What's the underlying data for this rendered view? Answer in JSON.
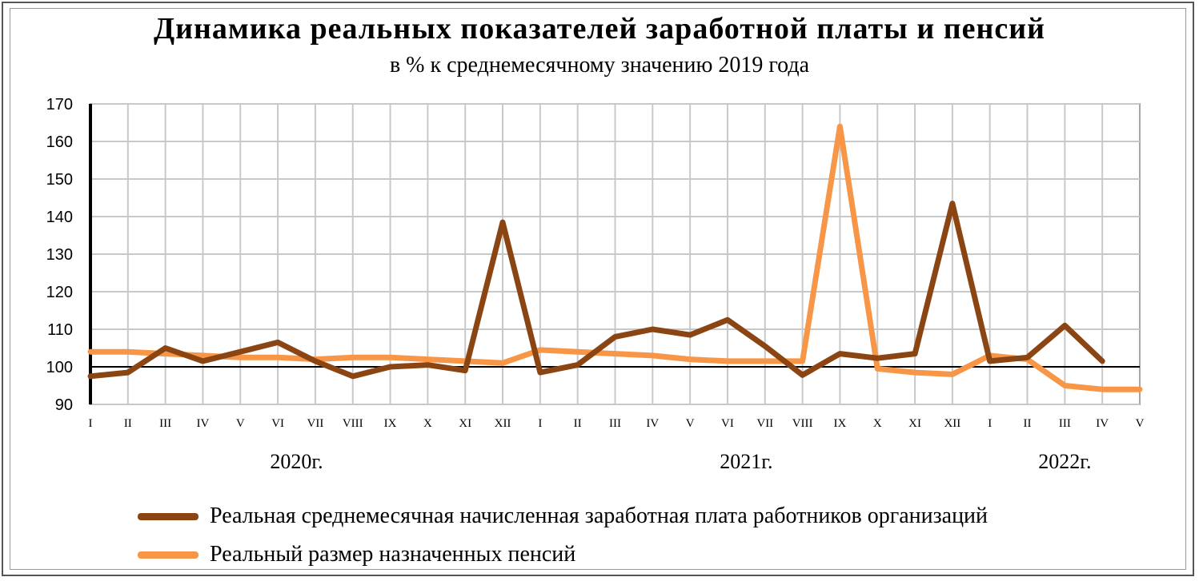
{
  "chart_data": {
    "type": "line",
    "title": "Динамика реальных показателей заработной платы и пенсий",
    "subtitle": "в % к среднемесячному значению 2019 года",
    "ylim": [
      90,
      170
    ],
    "yticks": [
      90,
      100,
      110,
      120,
      130,
      140,
      150,
      160,
      170
    ],
    "reference_line": 100,
    "grid": true,
    "legend_position": "bottom",
    "categories": [
      "I",
      "II",
      "III",
      "IV",
      "V",
      "VI",
      "VII",
      "VIII",
      "IX",
      "X",
      "XI",
      "XII",
      "I",
      "II",
      "III",
      "IV",
      "V",
      "VI",
      "VII",
      "VIII",
      "IX",
      "X",
      "XI",
      "XII",
      "I",
      "II",
      "III",
      "IV",
      "V"
    ],
    "year_labels": [
      {
        "label": "2020г.",
        "index": 5.5
      },
      {
        "label": "2021г.",
        "index": 17.5
      },
      {
        "label": "2022г.",
        "index": 26
      }
    ],
    "series": [
      {
        "name": "Реальная среднемесячная начисленная заработная плата работников организаций",
        "color": "#8B4513",
        "values": [
          97.5,
          98.5,
          105,
          101.5,
          104,
          106.5,
          101.5,
          97.5,
          100,
          100.5,
          99,
          138.5,
          98.5,
          100.5,
          108,
          110,
          108.5,
          112.5,
          105.5,
          97.8,
          103.5,
          102.3,
          103.5,
          143.5,
          101.5,
          102.5,
          111,
          101.5,
          null
        ]
      },
      {
        "name": "Реальный размер назначенных пенсий",
        "color": "#F79646",
        "values": [
          104,
          104,
          103.5,
          103,
          102.5,
          102.5,
          102,
          102.5,
          102.5,
          102,
          101.5,
          101,
          104.5,
          104,
          103.5,
          103,
          102,
          101.5,
          101.5,
          101.5,
          164,
          99.5,
          98.5,
          98,
          103,
          102,
          95,
          94,
          94
        ]
      }
    ]
  }
}
